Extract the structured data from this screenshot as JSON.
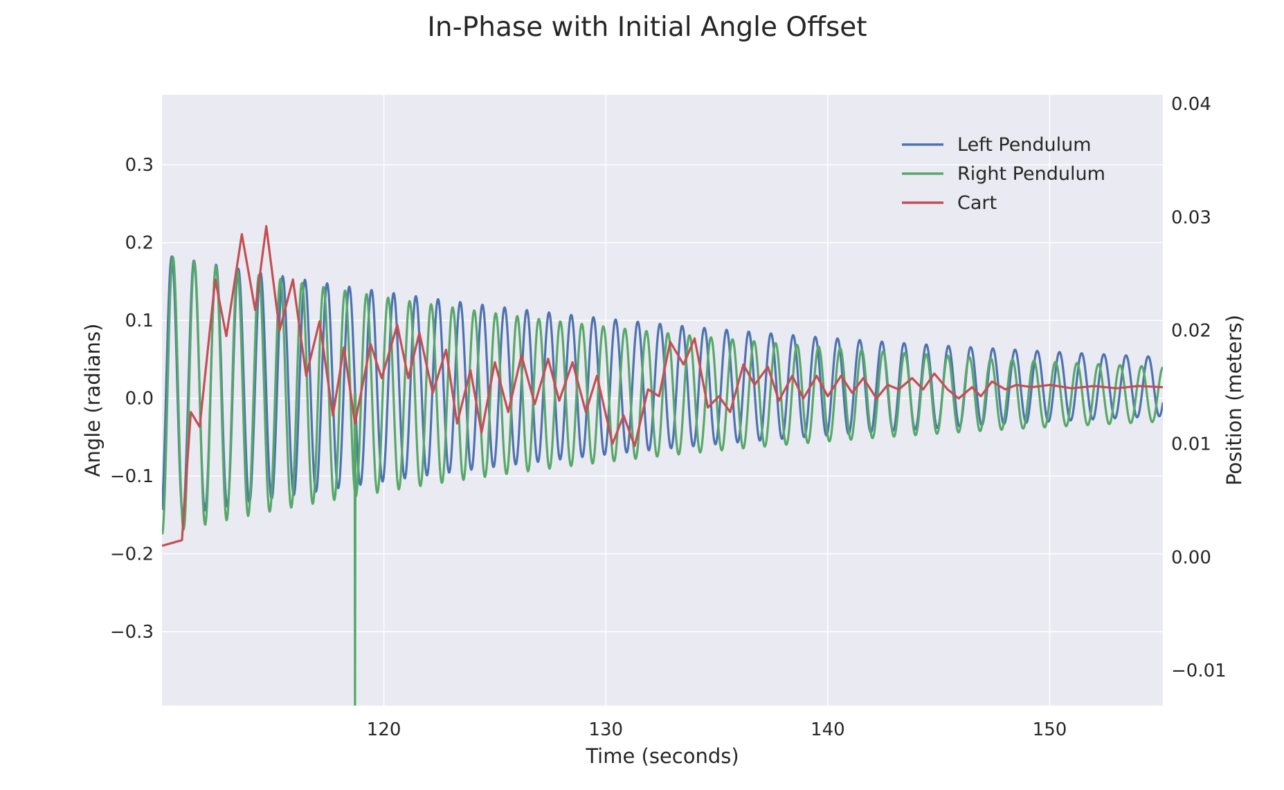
{
  "chart_data": {
    "type": "line",
    "title": "In-Phase with Initial Angle Offset",
    "xlabel": "Time (seconds)",
    "ylabel": "Angle (radians)",
    "y2label": "Position (meters)",
    "xlim": [
      110.0,
      155.1
    ],
    "ylim": [
      -0.395,
      0.39
    ],
    "y2lim": [
      -0.0131,
      0.0408
    ],
    "xticks": [
      120,
      130,
      140,
      150
    ],
    "xtick_labels": [
      "120",
      "130",
      "140",
      "150"
    ],
    "yticks": [
      -0.3,
      -0.2,
      -0.1,
      0.0,
      0.1,
      0.2,
      0.3
    ],
    "ytick_labels": [
      "−0.3",
      "−0.2",
      "−0.1",
      "0.0",
      "0.1",
      "0.2",
      "0.3"
    ],
    "y2ticks": [
      -0.01,
      0.0,
      0.01,
      0.02,
      0.03,
      0.04
    ],
    "y2tick_labels": [
      "−0.01",
      "0.00",
      "0.01",
      "0.02",
      "0.03",
      "0.04"
    ],
    "grid": true,
    "legend_position": "top-right",
    "series": [
      {
        "name": "Left Pendulum",
        "color": "#4c72b0",
        "axis": "left",
        "model": {
          "period": 1.0,
          "start_amplitude": 0.17,
          "end_amplitude": 0.038,
          "offset": 0.015,
          "envelope": "beat",
          "note": "amplitude decays with beating between pendulums"
        }
      },
      {
        "name": "Right Pendulum",
        "color": "#55a868",
        "axis": "left",
        "model": {
          "period": 0.97,
          "start_amplitude": 0.18,
          "end_amplitude": 0.035,
          "offset": 0.005,
          "spike": {
            "x": 118.7,
            "y": -0.395
          }
        }
      },
      {
        "name": "Cart",
        "color": "#c44e52",
        "axis": "right",
        "points": [
          [
            110.0,
            0.001
          ],
          [
            110.9,
            0.0015
          ],
          [
            111.3,
            0.0128
          ],
          [
            111.7,
            0.0115
          ],
          [
            112.4,
            0.0245
          ],
          [
            112.9,
            0.0195
          ],
          [
            113.6,
            0.0285
          ],
          [
            114.2,
            0.0218
          ],
          [
            114.7,
            0.0292
          ],
          [
            115.3,
            0.02
          ],
          [
            115.9,
            0.0245
          ],
          [
            116.5,
            0.016
          ],
          [
            117.1,
            0.0208
          ],
          [
            117.7,
            0.0125
          ],
          [
            118.2,
            0.0185
          ],
          [
            118.7,
            0.0118
          ],
          [
            119.4,
            0.0188
          ],
          [
            119.9,
            0.0158
          ],
          [
            120.6,
            0.0205
          ],
          [
            121.1,
            0.0158
          ],
          [
            121.6,
            0.0198
          ],
          [
            122.2,
            0.0145
          ],
          [
            122.8,
            0.0183
          ],
          [
            123.3,
            0.0118
          ],
          [
            123.9,
            0.0165
          ],
          [
            124.4,
            0.011
          ],
          [
            125.0,
            0.0172
          ],
          [
            125.6,
            0.0128
          ],
          [
            126.2,
            0.0178
          ],
          [
            126.8,
            0.0135
          ],
          [
            127.4,
            0.0175
          ],
          [
            127.9,
            0.0138
          ],
          [
            128.5,
            0.0172
          ],
          [
            129.1,
            0.0128
          ],
          [
            129.6,
            0.016
          ],
          [
            130.3,
            0.01
          ],
          [
            130.8,
            0.0125
          ],
          [
            131.3,
            0.0098
          ],
          [
            131.9,
            0.0148
          ],
          [
            132.4,
            0.0142
          ],
          [
            132.9,
            0.019
          ],
          [
            133.5,
            0.017
          ],
          [
            134.0,
            0.0193
          ],
          [
            134.6,
            0.0132
          ],
          [
            135.1,
            0.0142
          ],
          [
            135.6,
            0.0128
          ],
          [
            136.2,
            0.017
          ],
          [
            136.7,
            0.0152
          ],
          [
            137.3,
            0.0168
          ],
          [
            137.8,
            0.0138
          ],
          [
            138.4,
            0.016
          ],
          [
            138.9,
            0.014
          ],
          [
            139.5,
            0.016
          ],
          [
            140.0,
            0.0142
          ],
          [
            140.6,
            0.016
          ],
          [
            141.1,
            0.0145
          ],
          [
            141.6,
            0.0158
          ],
          [
            142.2,
            0.014
          ],
          [
            142.7,
            0.0152
          ],
          [
            143.2,
            0.0148
          ],
          [
            143.8,
            0.0158
          ],
          [
            144.3,
            0.0148
          ],
          [
            144.8,
            0.0162
          ],
          [
            145.4,
            0.0148
          ],
          [
            145.9,
            0.014
          ],
          [
            146.5,
            0.015
          ],
          [
            146.9,
            0.0142
          ],
          [
            147.4,
            0.0155
          ],
          [
            148.0,
            0.0148
          ],
          [
            148.5,
            0.0152
          ],
          [
            149.2,
            0.015
          ],
          [
            150.0,
            0.0152
          ],
          [
            151.0,
            0.0149
          ],
          [
            152.0,
            0.0151
          ],
          [
            153.0,
            0.0149
          ],
          [
            154.0,
            0.0151
          ],
          [
            155.1,
            0.015
          ]
        ]
      }
    ]
  }
}
